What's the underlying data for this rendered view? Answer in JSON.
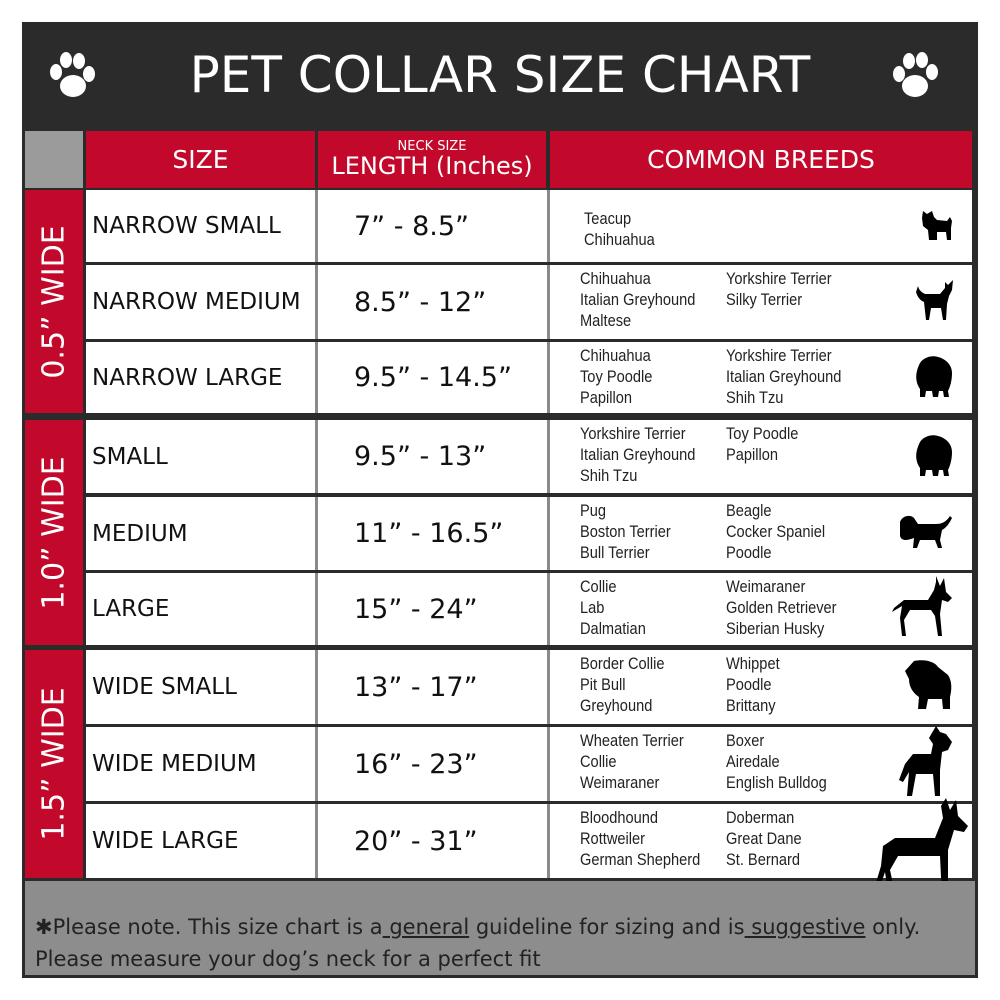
{
  "title": "PET COLLAR SIZE CHART",
  "headers": {
    "size": "SIZE",
    "length_small": "NECK SIZE",
    "length": "LENGTH (Inches)",
    "breeds": "COMMON BREEDS"
  },
  "groups": [
    "0.5” WIDE",
    "1.0” WIDE",
    "1.5” WIDE"
  ],
  "rows": [
    {
      "size": "NARROW SMALL",
      "length": "7” - 8.5”",
      "breeds_left": [
        "Teacup",
        "Chihuahua"
      ],
      "breeds_right": [],
      "icon": "small-dog-silhouette-icon"
    },
    {
      "size": "NARROW MEDIUM",
      "length": "8.5” - 12”",
      "breeds_left": [
        "Chihuahua",
        "Italian Greyhound",
        "Maltese"
      ],
      "breeds_right": [
        "Yorkshire Terrier",
        "Silky Terrier"
      ],
      "icon": "chihuahua-silhouette-icon"
    },
    {
      "size": "NARROW LARGE",
      "length": "9.5” - 14.5”",
      "breeds_left": [
        "Chihuahua",
        "Toy Poodle",
        "Papillon"
      ],
      "breeds_right": [
        "Yorkshire Terrier",
        "Italian Greyhound",
        "Shih Tzu"
      ],
      "icon": "fluffy-dog-silhouette-icon"
    },
    {
      "size": "SMALL",
      "length": "9.5” - 13”",
      "breeds_left": [
        "Yorkshire Terrier",
        "Italian Greyhound",
        "Shih Tzu"
      ],
      "breeds_right": [
        "Toy Poodle",
        "Papillon"
      ],
      "icon": "fluffy-dog-silhouette-icon"
    },
    {
      "size": "MEDIUM",
      "length": "11” - 16.5”",
      "breeds_left": [
        "Pug",
        "Boston Terrier",
        "Bull Terrier"
      ],
      "breeds_right": [
        "Beagle",
        "Cocker Spaniel",
        "Poodle"
      ],
      "icon": "dachshund-silhouette-icon"
    },
    {
      "size": "LARGE",
      "length": "15” - 24”",
      "breeds_left": [
        "Collie",
        "Lab",
        "Dalmatian"
      ],
      "breeds_right": [
        "Weimaraner",
        "Golden Retriever",
        "Siberian Husky"
      ],
      "icon": "shepherd-silhouette-icon"
    },
    {
      "size": "WIDE SMALL",
      "length": "13” - 17”",
      "breeds_left": [
        "Border Collie",
        "Pit Bull",
        "Greyhound"
      ],
      "breeds_right": [
        "Whippet",
        "Poodle",
        "Brittany"
      ],
      "icon": "bulldog-silhouette-icon"
    },
    {
      "size": "WIDE MEDIUM",
      "length": "16” - 23”",
      "breeds_left": [
        "Wheaten Terrier",
        "Collie",
        "Weimaraner"
      ],
      "breeds_right": [
        "Boxer",
        "Airedale",
        "English Bulldog"
      ],
      "icon": "pitbull-silhouette-icon"
    },
    {
      "size": "WIDE LARGE",
      "length": "20” - 31”",
      "breeds_left": [
        "Bloodhound",
        "Rottweiler",
        "German Shepherd"
      ],
      "breeds_right": [
        "Doberman",
        "Great Dane",
        "St. Bernard"
      ],
      "icon": "doberman-silhouette-icon"
    }
  ],
  "footer": {
    "part1": "✱Please note. This size chart is a",
    "general": " general",
    "part2": " guideline for sizing and is",
    "suggestive": " suggestive",
    "part3": " only.",
    "line2": "Please measure your dog’s neck for a perfect fit"
  },
  "colors": {
    "red": "#c3092b",
    "dark": "#2b2b2b",
    "gray": "#8d8d8d"
  }
}
